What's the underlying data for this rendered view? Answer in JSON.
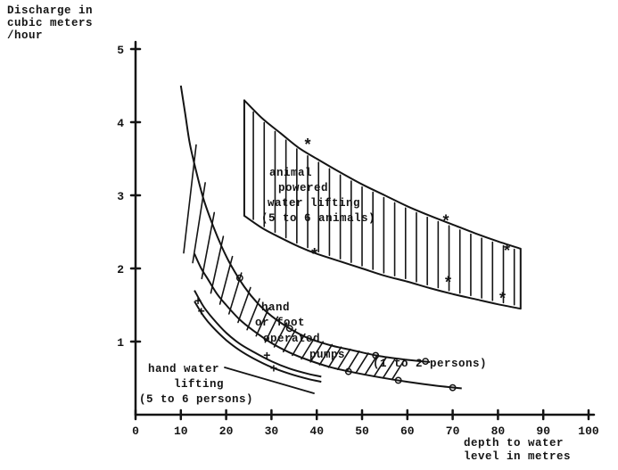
{
  "figure": {
    "background": "#ffffff",
    "ink_color": "#141414"
  },
  "chart_data": {
    "type": "area",
    "title": "",
    "ylabel_lines": [
      "Discharge in",
      "cubic meters",
      "/hour"
    ],
    "xlabel_lines": [
      "depth to water",
      "level in metres"
    ],
    "xlim": [
      0,
      100
    ],
    "ylim": [
      0,
      5
    ],
    "xticks": [
      0,
      10,
      20,
      30,
      40,
      50,
      60,
      70,
      80,
      90,
      100
    ],
    "yticks": [
      1,
      2,
      3,
      4,
      5
    ],
    "grid": false,
    "legend": "labels drawn inside plot",
    "bands": [
      {
        "name": "hand-or-foot-operated-pumps",
        "hatch": "diagonal",
        "hatch_range": [
          12,
          58,
          2
        ],
        "label_lines": [
          "hand",
          "or foot",
          "operated",
          "pumps",
          "(1 to 2 persons)"
        ],
        "upper": {
          "x": [
            10,
            11,
            12,
            13.5,
            15,
            17,
            19,
            21,
            24,
            27,
            30,
            34,
            38,
            43,
            48,
            54,
            60,
            65
          ],
          "y": [
            4.5,
            4.1,
            3.7,
            3.3,
            2.95,
            2.6,
            2.3,
            2.05,
            1.75,
            1.52,
            1.35,
            1.18,
            1.05,
            0.95,
            0.88,
            0.8,
            0.75,
            0.72
          ]
        },
        "lower": {
          "x": [
            13,
            14.5,
            16,
            18,
            20,
            23,
            26,
            30,
            34,
            38,
            43,
            48,
            54,
            60,
            66,
            72
          ],
          "y": [
            2.2,
            2.0,
            1.85,
            1.65,
            1.5,
            1.3,
            1.15,
            0.98,
            0.85,
            0.75,
            0.65,
            0.58,
            0.51,
            0.45,
            0.4,
            0.36
          ]
        },
        "closed_edges": false
      },
      {
        "name": "animal-powered-water-lifting",
        "hatch": "vertical",
        "hatch_range": [
          26,
          84,
          2.4
        ],
        "label_lines": [
          "animal",
          "powered",
          "water lifting",
          "(5 to 6 animals)"
        ],
        "upper": {
          "x": [
            24,
            28,
            32,
            36,
            40,
            45,
            50,
            55,
            60,
            65,
            70,
            75,
            80,
            85
          ],
          "y": [
            4.3,
            4.05,
            3.85,
            3.65,
            3.5,
            3.32,
            3.15,
            3.0,
            2.85,
            2.72,
            2.6,
            2.48,
            2.37,
            2.27
          ]
        },
        "lower": {
          "x": [
            24,
            28,
            32,
            36,
            40,
            45,
            50,
            55,
            60,
            65,
            70,
            75,
            80,
            85
          ],
          "y": [
            2.72,
            2.55,
            2.42,
            2.3,
            2.2,
            2.1,
            2.0,
            1.9,
            1.82,
            1.73,
            1.65,
            1.58,
            1.51,
            1.45
          ]
        },
        "closed_edges": true
      }
    ],
    "hand_water": {
      "name": "hand-water-lifting",
      "label_lines": [
        "hand water",
        "lifting",
        "(5 to 6 persons)"
      ],
      "upper": {
        "x": [
          13,
          15,
          17,
          20,
          23,
          26,
          30,
          34,
          38,
          41
        ],
        "y": [
          1.7,
          1.48,
          1.32,
          1.12,
          0.97,
          0.86,
          0.73,
          0.63,
          0.56,
          0.52
        ]
      },
      "lower": {
        "x": [
          13,
          15,
          17,
          20,
          23,
          26,
          30,
          34,
          38,
          41
        ],
        "y": [
          1.55,
          1.35,
          1.2,
          1.02,
          0.88,
          0.77,
          0.65,
          0.56,
          0.49,
          0.45
        ]
      }
    },
    "markers": {
      "star": [
        [
          38,
          3.7
        ],
        [
          68.5,
          2.66
        ],
        [
          82,
          2.25
        ],
        [
          39.5,
          2.2
        ],
        [
          69,
          1.82
        ],
        [
          81,
          1.6
        ]
      ],
      "plus": [
        [
          13.8,
          1.56
        ],
        [
          14.5,
          1.42
        ],
        [
          29,
          0.82
        ],
        [
          30.5,
          0.64
        ]
      ],
      "circle": [
        [
          23,
          1.87
        ],
        [
          34,
          1.18
        ],
        [
          47,
          0.59
        ],
        [
          53,
          0.81
        ],
        [
          58,
          0.47
        ],
        [
          64,
          0.73
        ],
        [
          70,
          0.37
        ]
      ]
    }
  }
}
